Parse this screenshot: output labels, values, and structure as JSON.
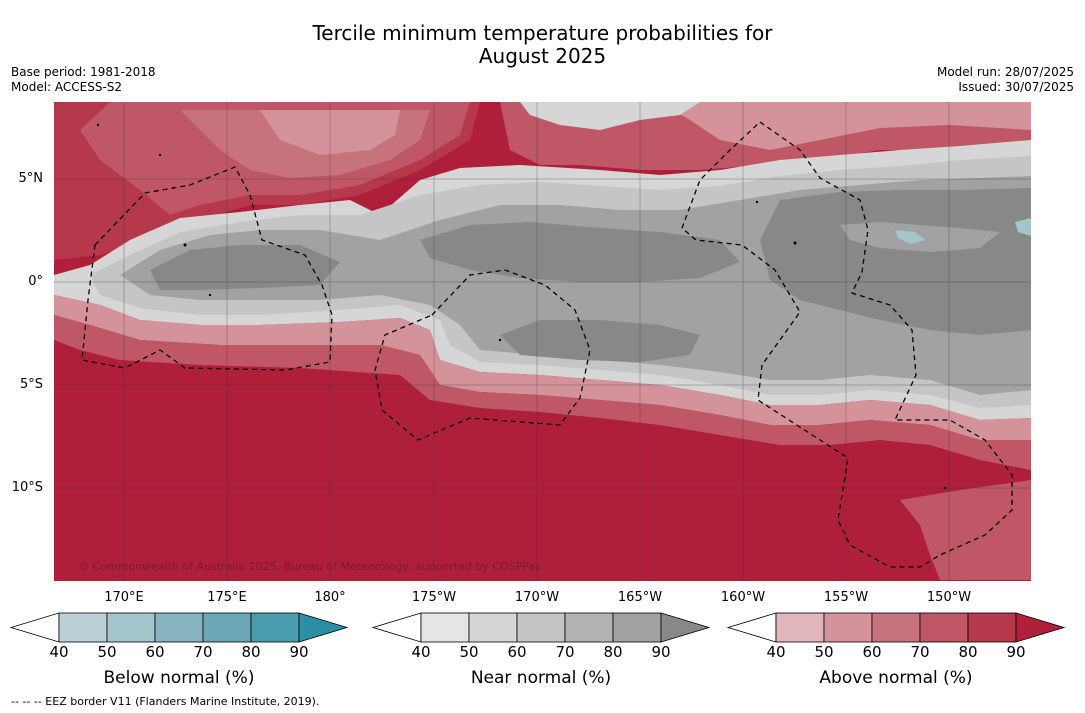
{
  "title_line1": "Tercile minimum temperature probabilities for",
  "title_line2": "August 2025",
  "meta": {
    "base_period": "Base period: 1981-2018",
    "model": "Model: ACCESS-S2",
    "model_run": "Model run: 28/07/2025",
    "issued": "Issued: 30/07/2025"
  },
  "map": {
    "copyright": "© Commonwealth of Australia 2025, Bureau of Meteorology, supported by COSPPac",
    "lat_labels": [
      "5°N",
      "0°",
      "5°S",
      "10°S"
    ],
    "lon_labels": [
      "170°E",
      "175°E",
      "180°",
      "175°W",
      "170°W",
      "165°W",
      "160°W",
      "155°W",
      "150°W"
    ]
  },
  "colorbars": [
    {
      "title": "Below normal (%)",
      "ticks": [
        "40",
        "50",
        "60",
        "70",
        "80",
        "90"
      ],
      "colors": [
        "#ffffff",
        "#bcd1d7",
        "#a4c5cb",
        "#87b4bf",
        "#6aa8b6",
        "#4a9daf",
        "#2e8ea6"
      ]
    },
    {
      "title": "Near normal (%)",
      "ticks": [
        "40",
        "50",
        "60",
        "70",
        "80",
        "90"
      ],
      "colors": [
        "#ffffff",
        "#e6e6e6",
        "#d6d6d6",
        "#c5c5c5",
        "#b3b3b3",
        "#a2a2a2",
        "#888888"
      ]
    },
    {
      "title": "Above normal (%)",
      "ticks": [
        "40",
        "50",
        "60",
        "70",
        "80",
        "90"
      ],
      "colors": [
        "#ffffff",
        "#e0b5bb",
        "#d4929b",
        "#c7737e",
        "#c05766",
        "#b5384b",
        "#b01f3a"
      ]
    }
  ],
  "footer": "-- -- -- EEZ border V11 (Flanders Marine Institute, 2019)."
}
